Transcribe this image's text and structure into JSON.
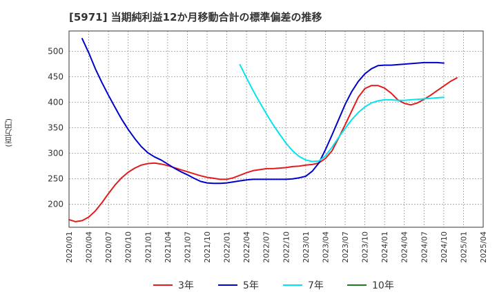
{
  "chart_data": {
    "type": "line",
    "title": "[5971]  当期純利益12か月移動合計の標準偏差の推移",
    "ylabel": "(百万円)",
    "xlabel": "",
    "ylim": [
      155,
      540
    ],
    "yticks": [
      200,
      250,
      300,
      350,
      400,
      450,
      500
    ],
    "xlim": [
      "2020/01",
      "2025/04"
    ],
    "xtick_labels": [
      "2020/01",
      "2020/04",
      "2020/07",
      "2020/10",
      "2021/01",
      "2021/04",
      "2021/07",
      "2021/10",
      "2022/01",
      "2022/04",
      "2022/07",
      "2022/10",
      "2023/01",
      "2023/04",
      "2023/07",
      "2023/10",
      "2024/01",
      "2024/04",
      "2024/07",
      "2024/10",
      "2025/01",
      "2025/04"
    ],
    "grid": true,
    "legend_position": "bottom",
    "series": [
      {
        "name": "3年",
        "color": "#e31a1c",
        "points": [
          [
            "2020/01",
            170
          ],
          [
            "2020/02",
            166
          ],
          [
            "2020/03",
            168
          ],
          [
            "2020/04",
            175
          ],
          [
            "2020/05",
            187
          ],
          [
            "2020/06",
            203
          ],
          [
            "2020/07",
            221
          ],
          [
            "2020/08",
            238
          ],
          [
            "2020/09",
            252
          ],
          [
            "2020/10",
            263
          ],
          [
            "2020/11",
            271
          ],
          [
            "2020/12",
            277
          ],
          [
            "2021/01",
            280
          ],
          [
            "2021/02",
            281
          ],
          [
            "2021/03",
            279
          ],
          [
            "2021/04",
            276
          ],
          [
            "2021/05",
            272
          ],
          [
            "2021/06",
            268
          ],
          [
            "2021/07",
            264
          ],
          [
            "2021/08",
            260
          ],
          [
            "2021/09",
            256
          ],
          [
            "2021/10",
            253
          ],
          [
            "2021/11",
            251
          ],
          [
            "2021/12",
            249
          ],
          [
            "2022/01",
            249
          ],
          [
            "2022/02",
            252
          ],
          [
            "2022/03",
            257
          ],
          [
            "2022/04",
            262
          ],
          [
            "2022/05",
            266
          ],
          [
            "2022/06",
            268
          ],
          [
            "2022/07",
            270
          ],
          [
            "2022/08",
            270
          ],
          [
            "2022/09",
            271
          ],
          [
            "2022/10",
            272
          ],
          [
            "2022/11",
            274
          ],
          [
            "2022/12",
            275
          ],
          [
            "2023/01",
            277
          ],
          [
            "2023/02",
            278
          ],
          [
            "2023/03",
            281
          ],
          [
            "2023/04",
            290
          ],
          [
            "2023/05",
            305
          ],
          [
            "2023/06",
            330
          ],
          [
            "2023/07",
            356
          ],
          [
            "2023/08",
            383
          ],
          [
            "2023/09",
            410
          ],
          [
            "2023/10",
            427
          ],
          [
            "2023/11",
            433
          ],
          [
            "2023/12",
            433
          ],
          [
            "2024/01",
            428
          ],
          [
            "2024/02",
            418
          ],
          [
            "2024/03",
            405
          ],
          [
            "2024/04",
            398
          ],
          [
            "2024/05",
            395
          ],
          [
            "2024/06",
            399
          ],
          [
            "2024/07",
            406
          ],
          [
            "2024/08",
            414
          ],
          [
            "2024/09",
            423
          ],
          [
            "2024/10",
            432
          ],
          [
            "2024/11",
            441
          ],
          [
            "2024/12",
            448
          ]
        ]
      },
      {
        "name": "5年",
        "color": "#0000cc",
        "points": [
          [
            "2020/03",
            525
          ],
          [
            "2020/04",
            497
          ],
          [
            "2020/05",
            466
          ],
          [
            "2020/06",
            439
          ],
          [
            "2020/07",
            414
          ],
          [
            "2020/08",
            390
          ],
          [
            "2020/09",
            367
          ],
          [
            "2020/10",
            347
          ],
          [
            "2020/11",
            329
          ],
          [
            "2020/12",
            313
          ],
          [
            "2021/01",
            301
          ],
          [
            "2021/02",
            293
          ],
          [
            "2021/03",
            287
          ],
          [
            "2021/04",
            279
          ],
          [
            "2021/05",
            271
          ],
          [
            "2021/06",
            264
          ],
          [
            "2021/07",
            258
          ],
          [
            "2021/08",
            251
          ],
          [
            "2021/09",
            245
          ],
          [
            "2021/10",
            242
          ],
          [
            "2021/11",
            241
          ],
          [
            "2021/12",
            241
          ],
          [
            "2022/01",
            242
          ],
          [
            "2022/02",
            244
          ],
          [
            "2022/03",
            246
          ],
          [
            "2022/04",
            248
          ],
          [
            "2022/05",
            249
          ],
          [
            "2022/06",
            249
          ],
          [
            "2022/07",
            249
          ],
          [
            "2022/08",
            249
          ],
          [
            "2022/09",
            249
          ],
          [
            "2022/10",
            249
          ],
          [
            "2022/11",
            250
          ],
          [
            "2022/12",
            252
          ],
          [
            "2023/01",
            255
          ],
          [
            "2023/02",
            265
          ],
          [
            "2023/03",
            281
          ],
          [
            "2023/04",
            307
          ],
          [
            "2023/05",
            336
          ],
          [
            "2023/06",
            366
          ],
          [
            "2023/07",
            396
          ],
          [
            "2023/08",
            421
          ],
          [
            "2023/09",
            441
          ],
          [
            "2023/10",
            456
          ],
          [
            "2023/11",
            466
          ],
          [
            "2023/12",
            472
          ],
          [
            "2024/01",
            473
          ],
          [
            "2024/02",
            473
          ],
          [
            "2024/03",
            474
          ],
          [
            "2024/04",
            475
          ],
          [
            "2024/05",
            476
          ],
          [
            "2024/06",
            477
          ],
          [
            "2024/07",
            478
          ],
          [
            "2024/08",
            478
          ],
          [
            "2024/09",
            478
          ],
          [
            "2024/10",
            477
          ]
        ]
      },
      {
        "name": "7年",
        "color": "#00e5ee",
        "points": [
          [
            "2022/03",
            474
          ],
          [
            "2022/04",
            448
          ],
          [
            "2022/05",
            423
          ],
          [
            "2022/06",
            400
          ],
          [
            "2022/07",
            378
          ],
          [
            "2022/08",
            357
          ],
          [
            "2022/09",
            338
          ],
          [
            "2022/10",
            320
          ],
          [
            "2022/11",
            305
          ],
          [
            "2022/12",
            294
          ],
          [
            "2023/01",
            287
          ],
          [
            "2023/02",
            284
          ],
          [
            "2023/03",
            285
          ],
          [
            "2023/04",
            295
          ],
          [
            "2023/05",
            312
          ],
          [
            "2023/06",
            331
          ],
          [
            "2023/07",
            349
          ],
          [
            "2023/08",
            366
          ],
          [
            "2023/09",
            380
          ],
          [
            "2023/10",
            391
          ],
          [
            "2023/11",
            399
          ],
          [
            "2023/12",
            403
          ],
          [
            "2024/01",
            405
          ],
          [
            "2024/02",
            405
          ],
          [
            "2024/03",
            404
          ],
          [
            "2024/04",
            404
          ],
          [
            "2024/05",
            405
          ],
          [
            "2024/06",
            406
          ],
          [
            "2024/07",
            407
          ],
          [
            "2024/08",
            408
          ],
          [
            "2024/09",
            409
          ],
          [
            "2024/10",
            410
          ]
        ]
      },
      {
        "name": "10年",
        "color": "#1f7a1f",
        "points": []
      }
    ]
  }
}
